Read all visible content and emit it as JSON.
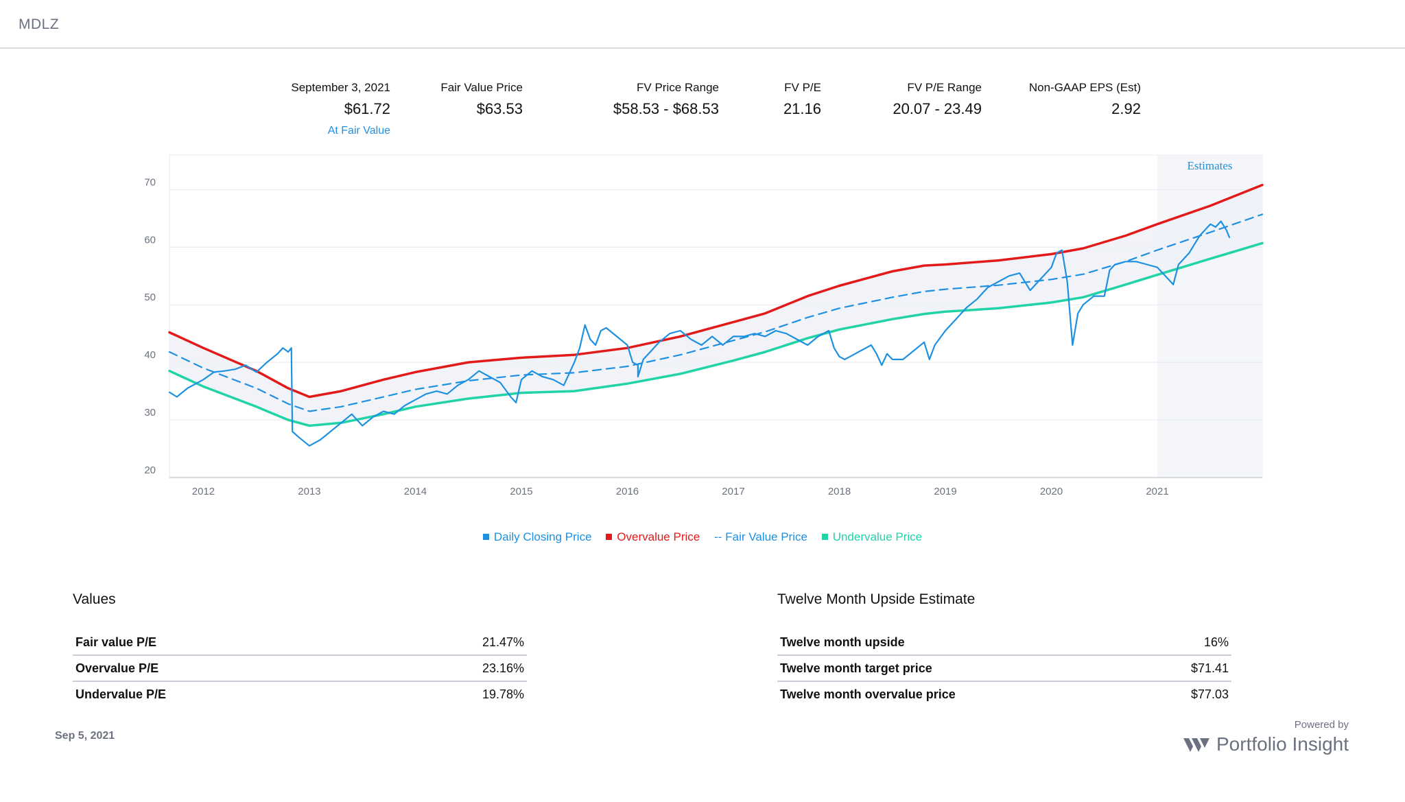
{
  "ticker": "MDLZ",
  "stats": [
    {
      "label": "September 3, 2021",
      "value": "$61.72",
      "sub": "At Fair Value"
    },
    {
      "label": "Fair Value Price",
      "value": "$63.53"
    },
    {
      "label": "FV Price Range",
      "value": "$58.53 - $68.53"
    },
    {
      "label": "FV P/E",
      "value": "21.16"
    },
    {
      "label": "FV P/E Range",
      "value": "20.07 - 23.49"
    },
    {
      "label": "Non-GAAP EPS (Est)",
      "value": "2.92"
    }
  ],
  "legend": {
    "daily": "Daily Closing Price",
    "overvalue": "Overvalue Price",
    "fair": "Fair Value Price",
    "undervalue": "Undervalue Price"
  },
  "values_section": {
    "title": "Values",
    "rows": [
      {
        "label": "Fair value P/E",
        "value": "21.47%"
      },
      {
        "label": "Overvalue P/E",
        "value": "23.16%"
      },
      {
        "label": "Undervalue P/E",
        "value": "19.78%"
      }
    ]
  },
  "upside_section": {
    "title": "Twelve Month Upside Estimate",
    "rows": [
      {
        "label": "Twelve month upside",
        "value": "16%"
      },
      {
        "label": "Twelve month target price",
        "value": "$71.41"
      },
      {
        "label": "Twelve month overvalue price",
        "value": "$77.03"
      }
    ]
  },
  "footer": {
    "date": "Sep 5, 2021",
    "powered_by": "Powered by",
    "brand": "Portfolio Insight"
  },
  "chart_data": {
    "type": "line",
    "estimates_label": "Estimates",
    "estimates_start": 2021.0,
    "xlim": [
      2011.68,
      2021.99
    ],
    "ylim": [
      20,
      76
    ],
    "y_ticks": [
      20,
      30,
      40,
      50,
      60,
      70
    ],
    "x_ticks": [
      2012,
      2013,
      2014,
      2015,
      2016,
      2017,
      2018,
      2019,
      2020,
      2021
    ],
    "grid": true,
    "colors": {
      "daily": "#1e90e0",
      "overvalue": "#e31a1a",
      "fair": "#1e90e0",
      "undervalue": "#23d3a8",
      "band": "#eef1f8",
      "estimates": "#f4f6fa"
    },
    "series": [
      {
        "name": "Overvalue Price",
        "points": [
          [
            2011.68,
            45.2
          ],
          [
            2012.0,
            42.5
          ],
          [
            2012.5,
            38.5
          ],
          [
            2012.8,
            35.5
          ],
          [
            2013.0,
            34.0
          ],
          [
            2013.3,
            35.0
          ],
          [
            2013.7,
            37.0
          ],
          [
            2014.0,
            38.3
          ],
          [
            2014.5,
            40.0
          ],
          [
            2015.0,
            40.8
          ],
          [
            2015.5,
            41.3
          ],
          [
            2016.0,
            42.5
          ],
          [
            2016.5,
            44.5
          ],
          [
            2017.0,
            47.0
          ],
          [
            2017.3,
            48.5
          ],
          [
            2017.7,
            51.5
          ],
          [
            2018.0,
            53.3
          ],
          [
            2018.5,
            55.8
          ],
          [
            2018.8,
            56.8
          ],
          [
            2019.0,
            57.0
          ],
          [
            2019.5,
            57.7
          ],
          [
            2020.0,
            58.8
          ],
          [
            2020.3,
            59.8
          ],
          [
            2020.7,
            62.0
          ],
          [
            2021.0,
            64.0
          ],
          [
            2021.5,
            67.2
          ],
          [
            2021.99,
            70.8
          ]
        ]
      },
      {
        "name": "Fair Value Price",
        "points": [
          [
            2011.68,
            41.8
          ],
          [
            2012.0,
            39.0
          ],
          [
            2012.5,
            35.5
          ],
          [
            2012.8,
            32.8
          ],
          [
            2013.0,
            31.5
          ],
          [
            2013.3,
            32.3
          ],
          [
            2013.7,
            34.0
          ],
          [
            2014.0,
            35.3
          ],
          [
            2014.5,
            36.8
          ],
          [
            2015.0,
            37.8
          ],
          [
            2015.5,
            38.2
          ],
          [
            2016.0,
            39.3
          ],
          [
            2016.5,
            41.3
          ],
          [
            2017.0,
            43.8
          ],
          [
            2017.3,
            45.3
          ],
          [
            2017.7,
            47.8
          ],
          [
            2018.0,
            49.4
          ],
          [
            2018.5,
            51.3
          ],
          [
            2018.8,
            52.3
          ],
          [
            2019.0,
            52.7
          ],
          [
            2019.5,
            53.4
          ],
          [
            2020.0,
            54.4
          ],
          [
            2020.3,
            55.3
          ],
          [
            2020.7,
            57.5
          ],
          [
            2021.0,
            59.5
          ],
          [
            2021.5,
            62.6
          ],
          [
            2021.99,
            65.7
          ]
        ]
      },
      {
        "name": "Undervalue Price",
        "points": [
          [
            2011.68,
            38.5
          ],
          [
            2012.0,
            35.8
          ],
          [
            2012.5,
            32.3
          ],
          [
            2012.8,
            30.0
          ],
          [
            2013.0,
            29.0
          ],
          [
            2013.3,
            29.5
          ],
          [
            2013.7,
            31.0
          ],
          [
            2014.0,
            32.3
          ],
          [
            2014.5,
            33.7
          ],
          [
            2015.0,
            34.7
          ],
          [
            2015.5,
            35.0
          ],
          [
            2016.0,
            36.3
          ],
          [
            2016.5,
            38.0
          ],
          [
            2017.0,
            40.3
          ],
          [
            2017.3,
            41.8
          ],
          [
            2017.7,
            44.2
          ],
          [
            2018.0,
            45.7
          ],
          [
            2018.5,
            47.5
          ],
          [
            2018.8,
            48.4
          ],
          [
            2019.0,
            48.8
          ],
          [
            2019.5,
            49.4
          ],
          [
            2020.0,
            50.4
          ],
          [
            2020.3,
            51.3
          ],
          [
            2020.7,
            53.5
          ],
          [
            2021.0,
            55.2
          ],
          [
            2021.5,
            58.0
          ],
          [
            2021.99,
            60.7
          ]
        ]
      },
      {
        "name": "Daily Closing Price",
        "points": [
          [
            2011.68,
            34.8
          ],
          [
            2011.75,
            34.0
          ],
          [
            2011.85,
            35.5
          ],
          [
            2012.0,
            37.0
          ],
          [
            2012.1,
            38.3
          ],
          [
            2012.2,
            38.5
          ],
          [
            2012.3,
            38.8
          ],
          [
            2012.4,
            39.5
          ],
          [
            2012.5,
            38.3
          ],
          [
            2012.6,
            40.0
          ],
          [
            2012.7,
            41.5
          ],
          [
            2012.75,
            42.5
          ],
          [
            2012.8,
            41.8
          ],
          [
            2012.83,
            42.5
          ],
          [
            2012.84,
            28.0
          ],
          [
            2012.9,
            27.0
          ],
          [
            2013.0,
            25.5
          ],
          [
            2013.1,
            26.5
          ],
          [
            2013.2,
            28.0
          ],
          [
            2013.3,
            29.5
          ],
          [
            2013.4,
            31.0
          ],
          [
            2013.5,
            29.0
          ],
          [
            2013.6,
            30.5
          ],
          [
            2013.7,
            31.5
          ],
          [
            2013.8,
            31.0
          ],
          [
            2013.9,
            32.5
          ],
          [
            2014.0,
            33.5
          ],
          [
            2014.1,
            34.5
          ],
          [
            2014.2,
            35.0
          ],
          [
            2014.3,
            34.5
          ],
          [
            2014.4,
            36.0
          ],
          [
            2014.5,
            37.0
          ],
          [
            2014.6,
            38.5
          ],
          [
            2014.7,
            37.5
          ],
          [
            2014.8,
            36.5
          ],
          [
            2014.9,
            34.0
          ],
          [
            2014.95,
            33.0
          ],
          [
            2015.0,
            37.0
          ],
          [
            2015.1,
            38.5
          ],
          [
            2015.2,
            37.5
          ],
          [
            2015.3,
            37.0
          ],
          [
            2015.4,
            36.0
          ],
          [
            2015.5,
            40.0
          ],
          [
            2015.55,
            42.5
          ],
          [
            2015.6,
            46.5
          ],
          [
            2015.65,
            44.0
          ],
          [
            2015.7,
            43.0
          ],
          [
            2015.75,
            45.5
          ],
          [
            2015.8,
            46.0
          ],
          [
            2015.9,
            44.5
          ],
          [
            2016.0,
            43.0
          ],
          [
            2016.05,
            40.0
          ],
          [
            2016.1,
            39.5
          ],
          [
            2016.1,
            37.5
          ],
          [
            2016.15,
            40.5
          ],
          [
            2016.2,
            41.5
          ],
          [
            2016.3,
            43.5
          ],
          [
            2016.4,
            45.0
          ],
          [
            2016.5,
            45.5
          ],
          [
            2016.6,
            44.0
          ],
          [
            2016.7,
            43.0
          ],
          [
            2016.8,
            44.5
          ],
          [
            2016.9,
            43.0
          ],
          [
            2017.0,
            44.5
          ],
          [
            2017.1,
            44.5
          ],
          [
            2017.2,
            45.0
          ],
          [
            2017.3,
            44.5
          ],
          [
            2017.4,
            45.5
          ],
          [
            2017.5,
            45.0
          ],
          [
            2017.6,
            44.0
          ],
          [
            2017.7,
            43.0
          ],
          [
            2017.8,
            44.5
          ],
          [
            2017.9,
            45.5
          ],
          [
            2017.95,
            42.5
          ],
          [
            2018.0,
            41.0
          ],
          [
            2018.05,
            40.5
          ],
          [
            2018.1,
            41.0
          ],
          [
            2018.2,
            42.0
          ],
          [
            2018.3,
            43.0
          ],
          [
            2018.35,
            41.5
          ],
          [
            2018.4,
            39.5
          ],
          [
            2018.45,
            41.5
          ],
          [
            2018.5,
            40.5
          ],
          [
            2018.6,
            40.5
          ],
          [
            2018.7,
            42.0
          ],
          [
            2018.8,
            43.5
          ],
          [
            2018.85,
            40.5
          ],
          [
            2018.9,
            43.0
          ],
          [
            2019.0,
            45.5
          ],
          [
            2019.1,
            47.5
          ],
          [
            2019.2,
            49.5
          ],
          [
            2019.3,
            51.0
          ],
          [
            2019.4,
            53.0
          ],
          [
            2019.5,
            54.0
          ],
          [
            2019.6,
            55.0
          ],
          [
            2019.7,
            55.5
          ],
          [
            2019.8,
            52.5
          ],
          [
            2019.9,
            54.5
          ],
          [
            2020.0,
            56.5
          ],
          [
            2020.05,
            59.0
          ],
          [
            2020.1,
            59.5
          ],
          [
            2020.15,
            54.0
          ],
          [
            2020.2,
            43.0
          ],
          [
            2020.25,
            48.5
          ],
          [
            2020.3,
            50.0
          ],
          [
            2020.4,
            51.5
          ],
          [
            2020.5,
            51.5
          ],
          [
            2020.55,
            56.0
          ],
          [
            2020.6,
            57.0
          ],
          [
            2020.7,
            57.5
          ],
          [
            2020.8,
            57.5
          ],
          [
            2020.9,
            57.0
          ],
          [
            2021.0,
            56.5
          ],
          [
            2021.1,
            54.5
          ],
          [
            2021.15,
            53.5
          ],
          [
            2021.2,
            57.0
          ],
          [
            2021.3,
            59.0
          ],
          [
            2021.4,
            62.0
          ],
          [
            2021.5,
            64.0
          ],
          [
            2021.55,
            63.5
          ],
          [
            2021.6,
            64.5
          ],
          [
            2021.65,
            63.0
          ],
          [
            2021.68,
            61.7
          ]
        ]
      }
    ]
  }
}
